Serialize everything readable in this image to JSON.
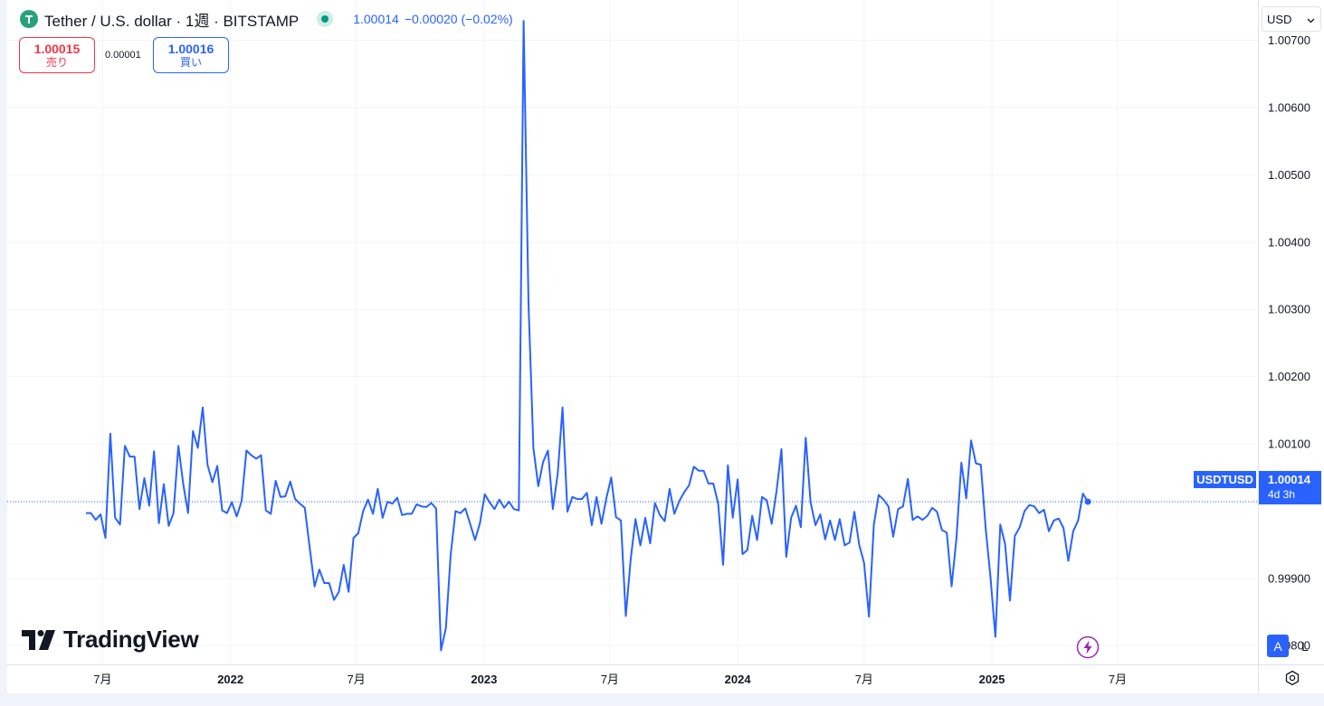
{
  "header": {
    "symbol_title": "Tether / U.S. dollar · 1週 · BITSTAMP",
    "last_price": "1.00014",
    "change": "−0.00020 (−0.02%)",
    "logo_icon": "tether-logo-icon",
    "status_icon": "market-open-dot-icon"
  },
  "trade": {
    "sell_price": "1.00015",
    "sell_label": "売り",
    "spread": "0.00001",
    "buy_price": "1.00016",
    "buy_label": "買い"
  },
  "currency": {
    "value": "USD",
    "icon": "chevron-down-icon"
  },
  "price_label": {
    "symbol": "USDTUSD",
    "value": "1.00014",
    "countdown": "4d 3h"
  },
  "watermark": "TradingView",
  "scale_buttons": {
    "auto": "A",
    "log": "L"
  },
  "colors": {
    "line": "#2962ff",
    "sell": "#f23645",
    "buy": "#2962ff",
    "tether": "#26a17b",
    "grid": "#f0f3fa"
  },
  "chart_data": {
    "type": "line",
    "title": "Tether / U.S. dollar · 1週 · BITSTAMP",
    "xlabel": "",
    "ylabel": "",
    "interval": "1週",
    "x_tick_labels": [
      "7月",
      "2022",
      "7月",
      "2023",
      "7月",
      "2024",
      "7月",
      "2025",
      "7月"
    ],
    "y_tick_labels": [
      "0.99800",
      "0.99900",
      "1.00100",
      "1.00200",
      "1.00300",
      "1.00400",
      "1.00500",
      "1.00600",
      "1.00700"
    ],
    "ylim": [
      0.99772,
      1.0076
    ],
    "grid": true,
    "last_value": 1.00014,
    "series": [
      {
        "start": "2021-06-07",
        "values": [
          0.99997,
          0.99997,
          0.99987,
          0.99995,
          0.9996,
          1.00115,
          0.9999,
          0.9998,
          1.00097,
          1.00081,
          1.00081,
          1.00003,
          1.00049,
          1.00008,
          1.00089,
          0.99982,
          1.0004,
          0.99978,
          0.99997,
          1.00097,
          1.0004,
          0.99997,
          1.00119,
          1.00094,
          1.00154,
          1.00069,
          1.00043,
          1.00067,
          1.00001,
          0.99997,
          1.00013,
          0.99992,
          1.00015,
          1.0009,
          1.00083,
          1.00078,
          1.00083,
          1.00001,
          0.99996,
          1.00045,
          1.00021,
          1.00022,
          1.00044,
          1.00018,
          1.00011,
          1.00005,
          0.99946,
          0.99888,
          0.99913,
          0.99893,
          0.99893,
          0.99868,
          0.9988,
          0.9992,
          0.9988,
          0.9996,
          0.99967,
          1.0,
          1.00017,
          0.99996,
          1.00033,
          0.9999,
          1.00014,
          1.00011,
          1.0002,
          0.99994,
          0.99996,
          0.99996,
          1.0001,
          1.00007,
          1.00006,
          1.00012,
          1.00004,
          0.99793,
          0.99826,
          0.99935,
          1.0,
          0.99997,
          1.00004,
          0.99981,
          0.99957,
          0.99982,
          1.00025,
          1.00013,
          1.00003,
          1.00017,
          1.00005,
          1.00014,
          1.00003,
          1.00001,
          1.00729,
          1.00308,
          1.00094,
          1.00037,
          1.00073,
          1.0009,
          1.00003,
          1.00056,
          1.00154,
          0.99999,
          1.00021,
          1.00018,
          1.00018,
          1.00027,
          0.99979,
          1.00021,
          0.99981,
          1.00019,
          1.0005,
          0.99991,
          0.99986,
          0.99844,
          0.99928,
          0.99988,
          0.99949,
          0.9999,
          0.99952,
          1.00012,
          0.99994,
          0.99985,
          1.00033,
          0.99996,
          1.00015,
          1.00028,
          1.00038,
          1.00066,
          1.0006,
          1.0006,
          1.00041,
          1.00041,
          1.00011,
          0.9992,
          1.00068,
          0.9999,
          1.00047,
          0.99936,
          0.99942,
          0.99993,
          0.99957,
          1.00021,
          1.00016,
          0.99981,
          1.0003,
          1.00092,
          0.99932,
          0.9999,
          1.00008,
          0.99976,
          1.00109,
          1.00013,
          0.99979,
          0.99995,
          0.99958,
          0.99986,
          0.99957,
          0.99988,
          0.99949,
          0.99953,
          0.99999,
          0.9995,
          0.99923,
          0.99843,
          0.9998,
          1.00024,
          1.00017,
          1.00007,
          0.99962,
          1.00003,
          1.00007,
          1.00048,
          0.99987,
          0.99992,
          0.99987,
          0.99993,
          1.00005,
          0.99999,
          0.99972,
          0.99968,
          0.99888,
          0.9996,
          1.00072,
          1.00019,
          1.00105,
          1.00071,
          1.00069,
          0.99974,
          0.99901,
          0.99813,
          0.9998,
          0.99951,
          0.99867,
          0.99963,
          0.99976,
          1.0,
          1.00009,
          1.00007,
          0.99997,
          1.00002,
          0.9997,
          0.99986,
          0.99989,
          0.99975,
          0.99926,
          0.9997,
          0.99986,
          1.00026,
          1.00014
        ]
      }
    ]
  }
}
